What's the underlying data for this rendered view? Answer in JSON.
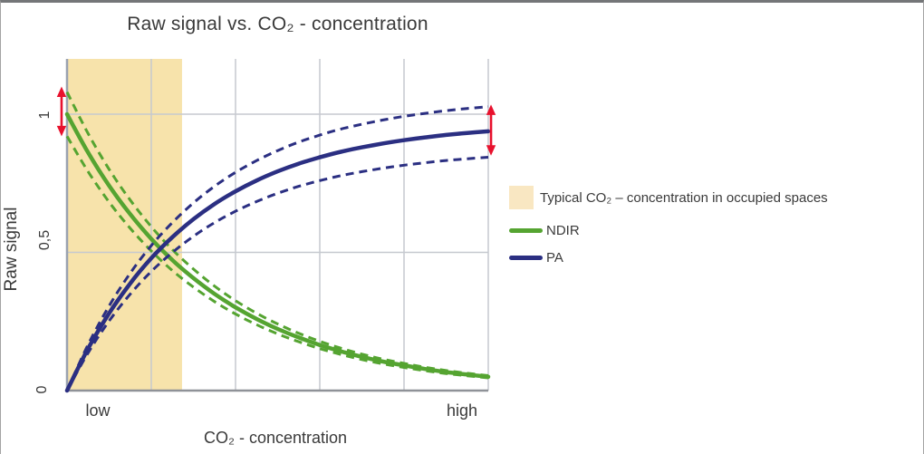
{
  "chart_data": {
    "type": "line",
    "title": "Raw signal vs. CO₂ - concentration",
    "xlabel": "CO₂ - concentration",
    "ylabel": "Raw signal",
    "xlim": [
      0,
      1
    ],
    "ylim": [
      0,
      1.2
    ],
    "x_tick_labels": [
      {
        "label": "low",
        "x": 0.071
      },
      {
        "label": "high",
        "x": 0.936
      }
    ],
    "y_ticks": [
      {
        "label": "0",
        "value": 0
      },
      {
        "label": "0,5",
        "value": 0.5
      },
      {
        "label": "1",
        "value": 1
      }
    ],
    "x_gridlines": [
      0.2,
      0.4,
      0.6,
      0.8,
      1.0
    ],
    "y_gridlines": [
      0.5,
      1.0
    ],
    "grid_on": true,
    "grid_color": "#c6c9cf",
    "y_axis_color": "#9aa2b0",
    "x_axis_color": "#8f9298",
    "legend_position": "right",
    "shaded_region": {
      "label": "Typical CO₂ – concentration in occupied spaces",
      "x0": 0,
      "x1": 0.273,
      "color": "#f7e3ab"
    },
    "x": [
      0,
      0.05,
      0.1,
      0.15,
      0.2,
      0.25,
      0.3,
      0.35,
      0.4,
      0.45,
      0.5,
      0.55,
      0.6,
      0.65,
      0.7,
      0.75,
      0.8,
      0.85,
      0.9,
      0.95,
      1.0
    ],
    "series": [
      {
        "name": "NDIR",
        "color": "#55a431",
        "style": "solid-with-dashed-tolerance-band",
        "values": [
          1.0,
          0.861,
          0.741,
          0.638,
          0.549,
          0.472,
          0.407,
          0.35,
          0.301,
          0.259,
          0.223,
          0.192,
          0.165,
          0.142,
          0.122,
          0.105,
          0.091,
          0.078,
          0.067,
          0.058,
          0.05
        ],
        "band_upper_factor": 1.08,
        "band_lower_factor": 0.92
      },
      {
        "name": "PA",
        "color": "#2b2f82",
        "style": "solid-with-dashed-tolerance-band",
        "values": [
          0,
          0.152,
          0.28,
          0.388,
          0.479,
          0.555,
          0.62,
          0.675,
          0.721,
          0.76,
          0.793,
          0.821,
          0.844,
          0.864,
          0.88,
          0.894,
          0.906,
          0.916,
          0.925,
          0.932,
          0.938
        ],
        "band_upper_factor": 1.095,
        "band_lower_factor": 0.9
      }
    ],
    "annotations": {
      "arrow_color": "#e8112d",
      "left_spread_arrow": {
        "x": -0.013,
        "y0": 0.92,
        "y1": 1.1
      },
      "right_spread_arrow": {
        "x": 1.0065,
        "y0": 0.85,
        "y1": 1.035
      }
    }
  },
  "legend": {
    "region_item": {
      "label": "Typical CO₂ – concentration in occupied spaces",
      "color": "#f9e7c2"
    },
    "series_items": [
      {
        "label": "NDIR",
        "color": "#55a431"
      },
      {
        "label": "PA",
        "color": "#2b2f82"
      }
    ]
  }
}
